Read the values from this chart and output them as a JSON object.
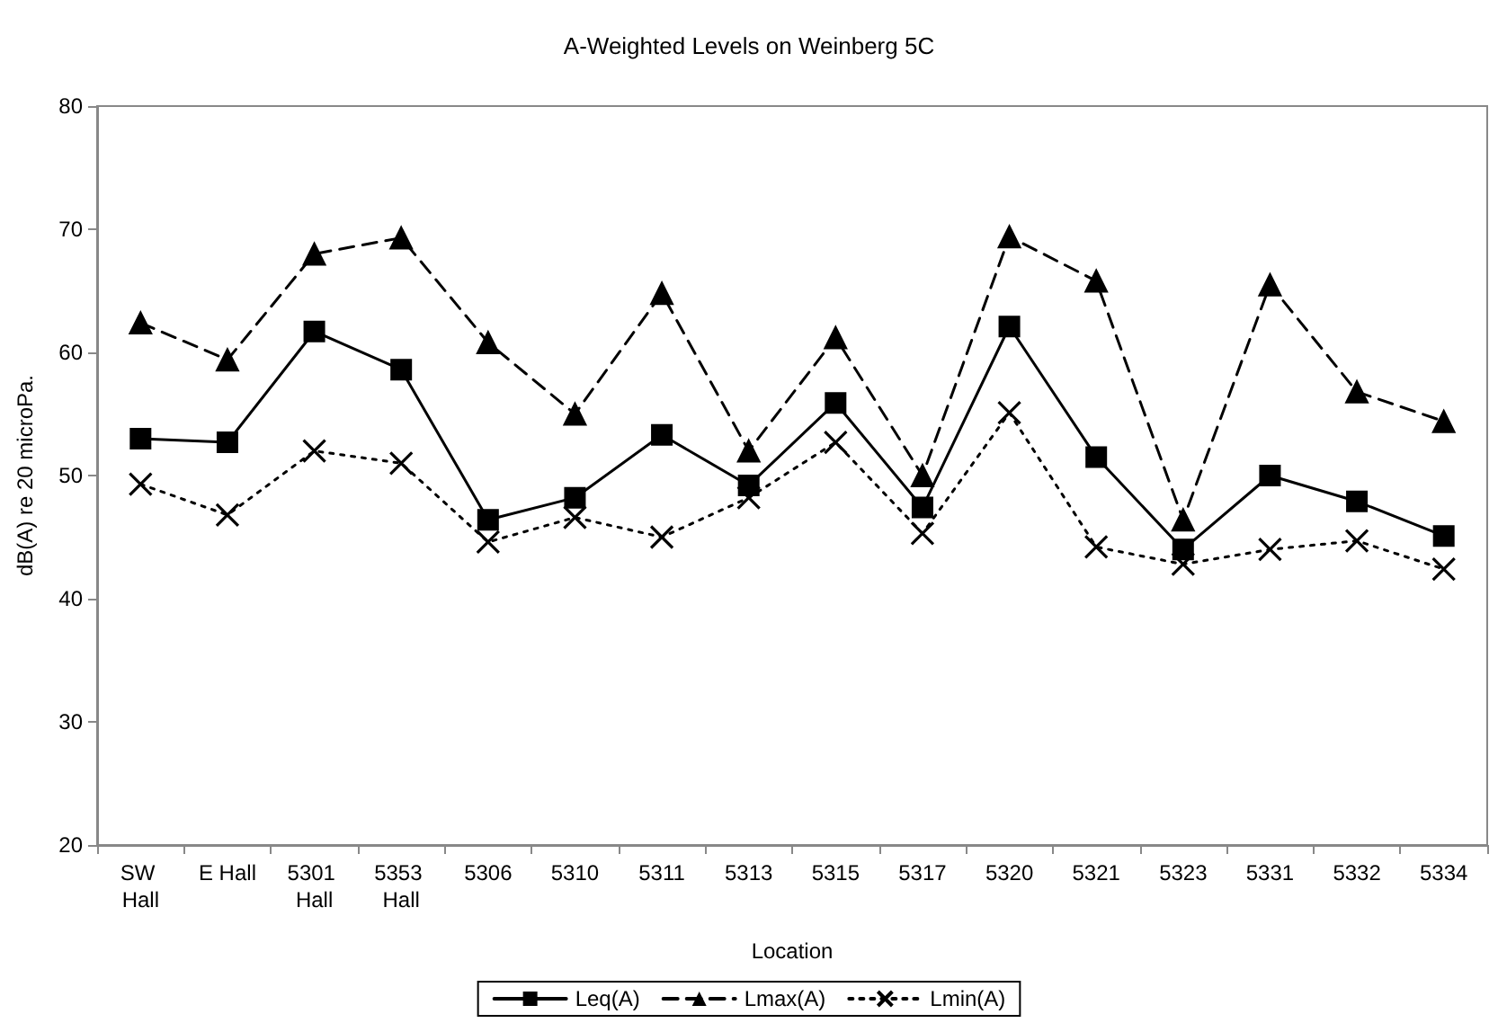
{
  "chart_data": {
    "type": "line",
    "title": "A-Weighted Levels on Weinberg 5C",
    "xlabel": "Location",
    "ylabel": "dB(A) re 20 microPa.",
    "categories": [
      "SW Hall",
      "E Hall",
      "5301 Hall",
      "5353 Hall",
      "5306",
      "5310",
      "5311",
      "5313",
      "5315",
      "5317",
      "5320",
      "5321",
      "5323",
      "5331",
      "5332",
      "5334"
    ],
    "series": [
      {
        "name": "Leq(A)",
        "color": "#000000",
        "marker": "square",
        "line_style": "solid",
        "values": [
          53,
          52.7,
          61.7,
          58.6,
          46.4,
          48.2,
          53.3,
          49.2,
          55.9,
          47.4,
          62.1,
          51.5,
          44,
          50,
          47.9,
          45.1
        ]
      },
      {
        "name": "Lmax(A)",
        "color": "#000000",
        "marker": "triangle",
        "line_style": "dashed",
        "values": [
          62.4,
          59.4,
          68,
          69.3,
          60.8,
          55,
          64.8,
          52,
          61.2,
          50,
          69.4,
          65.8,
          46.4,
          65.5,
          56.8,
          54.4
        ]
      },
      {
        "name": "Lmin(A)",
        "color": "#000000",
        "marker": "cross",
        "line_style": "dotted",
        "values": [
          49.3,
          46.8,
          52,
          51,
          44.6,
          46.6,
          45,
          48.2,
          52.7,
          45.3,
          55.1,
          44.2,
          42.8,
          44,
          44.7,
          42.4
        ]
      }
    ],
    "ylim": [
      20,
      80
    ],
    "yticks": [
      20,
      30,
      40,
      50,
      60,
      70,
      80
    ],
    "grid": false,
    "legend": "bottom"
  }
}
